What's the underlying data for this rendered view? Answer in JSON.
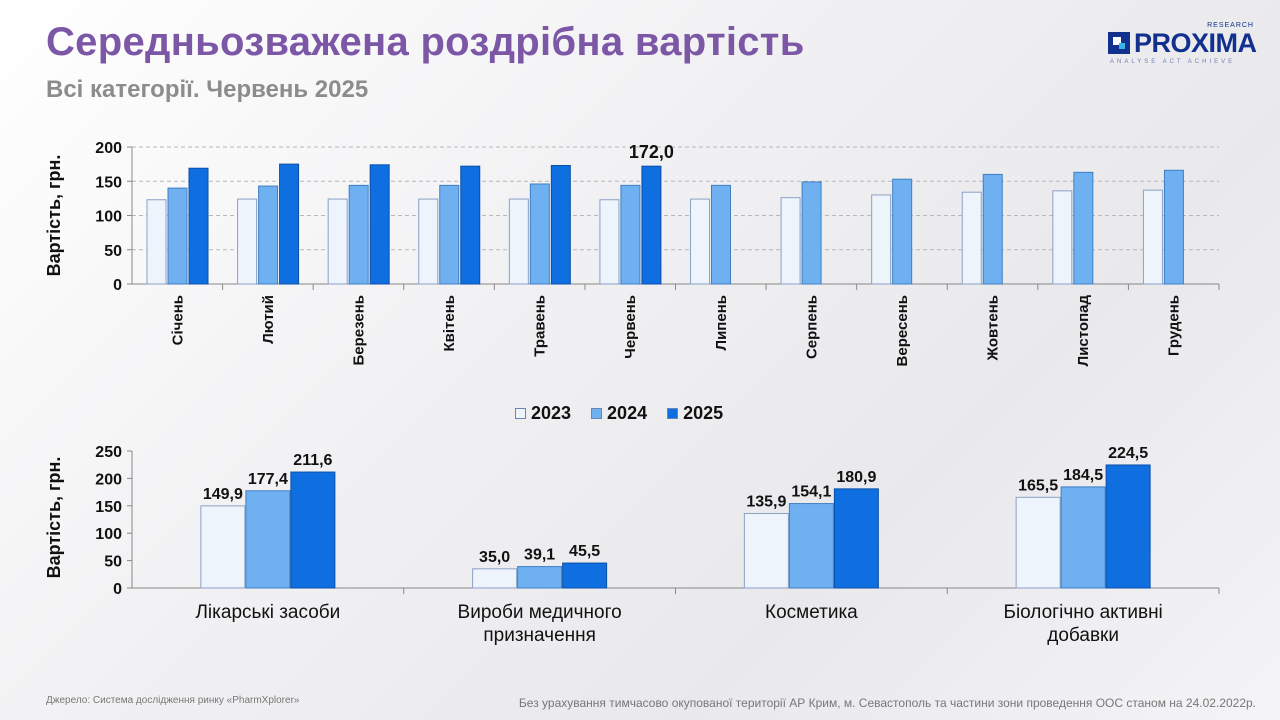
{
  "header": {
    "title": "Середньозважена роздрібна вартість",
    "subtitle": "Всі категорії. Червень 2025"
  },
  "logo": {
    "name": "PROXIMA",
    "research": "RESEARCH",
    "tagline": "ANALYSE  ACT  ACHIEVE"
  },
  "colors": {
    "2023": "#eef4fc",
    "2024": "#6fb0f0",
    "2025": "#0f6fe0",
    "title": "#7c57a6"
  },
  "legend": [
    {
      "name": "2023",
      "color": "#eef4fc"
    },
    {
      "name": "2024",
      "color": "#6fb0f0"
    },
    {
      "name": "2025",
      "color": "#0f6fe0"
    }
  ],
  "chart_data": [
    {
      "type": "bar",
      "ylabel": "Вартість, грн.",
      "ylim": [
        0,
        200
      ],
      "yticks": [
        0,
        50,
        100,
        150,
        200
      ],
      "grid": true,
      "categories": [
        "Січень",
        "Лютий",
        "Березень",
        "Квітень",
        "Травень",
        "Червень",
        "Липень",
        "Серпень",
        "Вересень",
        "Жовтень",
        "Листопад",
        "Грудень"
      ],
      "series": [
        {
          "name": "2023",
          "values": [
            123,
            124,
            124,
            124,
            124,
            123,
            124,
            126,
            130,
            134,
            136,
            137
          ]
        },
        {
          "name": "2024",
          "values": [
            140,
            143,
            144,
            144,
            146,
            144,
            144,
            149,
            153,
            160,
            163,
            166
          ]
        },
        {
          "name": "2025",
          "values": [
            169,
            175,
            174,
            172,
            173,
            172.0,
            null,
            null,
            null,
            null,
            null,
            null
          ]
        }
      ],
      "annotations": [
        {
          "category": "Червень",
          "series": "2025",
          "label": "172,0"
        }
      ]
    },
    {
      "type": "bar",
      "ylabel": "Вартість, грн.",
      "ylim": [
        0,
        250
      ],
      "yticks": [
        0,
        50,
        100,
        150,
        200,
        250
      ],
      "grid": false,
      "categories": [
        "Лікарські засоби",
        "Вироби медичного призначення",
        "Косметика",
        "Біологічно активні добавки"
      ],
      "series": [
        {
          "name": "2023",
          "values": [
            149.9,
            35.0,
            135.9,
            165.5
          ],
          "labels": [
            "149,9",
            "35,0",
            "135,9",
            "165,5"
          ]
        },
        {
          "name": "2024",
          "values": [
            177.4,
            39.1,
            154.1,
            184.5
          ],
          "labels": [
            "177,4",
            "39,1",
            "154,1",
            "184,5"
          ]
        },
        {
          "name": "2025",
          "values": [
            211.6,
            45.5,
            180.9,
            224.5
          ],
          "labels": [
            "211,6",
            "45,5",
            "180,9",
            "224,5"
          ]
        }
      ]
    }
  ],
  "footer": {
    "source": "Джерело: Система дослідження ринку «PharmXplorer»",
    "note": "Без урахування тимчасово окупованої території АР Крим, м. Севастополь та частини зони проведення ООС станом на 24.02.2022р."
  }
}
